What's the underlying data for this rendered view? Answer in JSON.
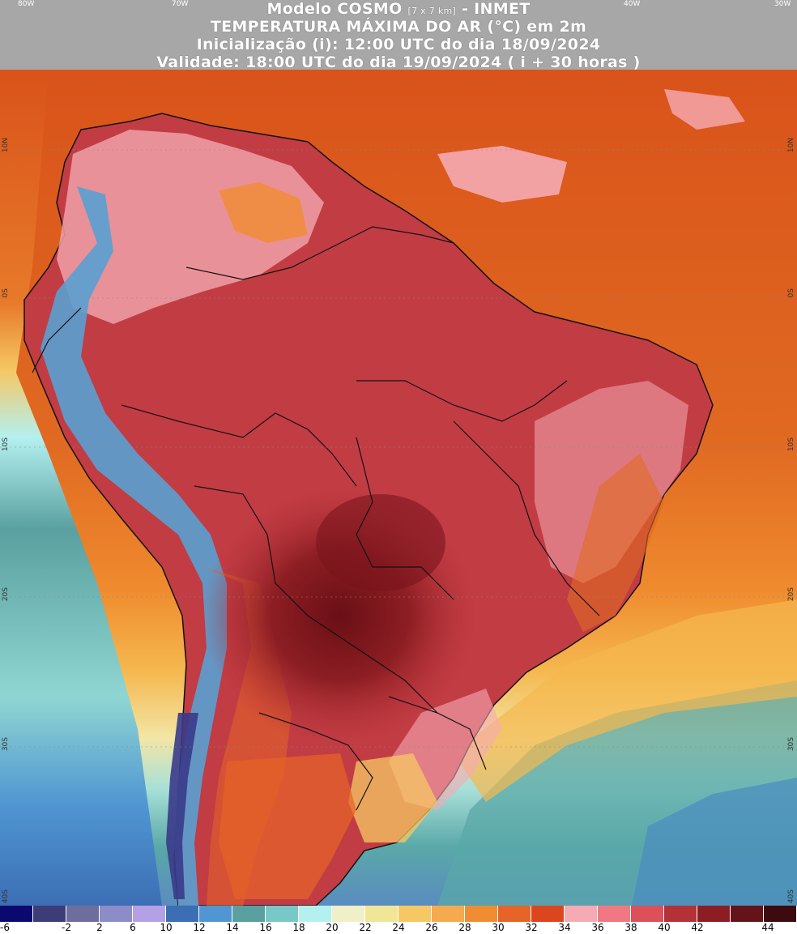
{
  "header": {
    "model_name": "Modelo COSMO",
    "resolution": "[7 x 7 km]",
    "institute": "- INMET",
    "variable": "TEMPERATURA MÁXIMA DO AR (°C) em 2m",
    "initialization": "Inicialização (i): 12:00 UTC do dia 18/09/2024",
    "validity": "Validade: 18:00 UTC do dia 19/09/2024 ( i + 30 horas )"
  },
  "longitude_labels": [
    "80W",
    "70W",
    "40W",
    "30W"
  ],
  "latitude_labels_right": [
    "10N",
    "0S",
    "10S",
    "20S",
    "30S",
    "40S"
  ],
  "latitude_labels_left": [
    "10N",
    "0S",
    "10S",
    "20S",
    "30S",
    "40S"
  ],
  "legend": {
    "ticks": [
      "-6",
      "-2",
      "2",
      "6",
      "10",
      "12",
      "14",
      "16",
      "18",
      "20",
      "22",
      "24",
      "26",
      "28",
      "30",
      "32",
      "34",
      "36",
      "38",
      "40",
      "42",
      "44"
    ],
    "colors": [
      "#0a0a6e",
      "#3c3c78",
      "#6e6e9e",
      "#8c8cc8",
      "#b4a0e6",
      "#3c6eb4",
      "#5096d2",
      "#5aa0a0",
      "#78c8c8",
      "#b4f0f0",
      "#f0f0c8",
      "#f0e696",
      "#f5c864",
      "#f5aa50",
      "#f08c32",
      "#e66428",
      "#dc461e",
      "#f5aab4",
      "#f07882",
      "#dc505a",
      "#b43237",
      "#8c1e23",
      "#641419",
      "#3c0a0f"
    ]
  },
  "colors": {
    "ocean_hot": "#d95a1e",
    "ocean_warm": "#e87a2a",
    "ocean_mild": "#f5b050",
    "ocean_cool": "#5aa8a8",
    "ocean_cold": "#4a7ab8",
    "land_hot": "#b8323c",
    "land_very_hot": "#7a141c",
    "land_pink": "#f0a0a8",
    "andes_cold": "#3a3a8a"
  }
}
